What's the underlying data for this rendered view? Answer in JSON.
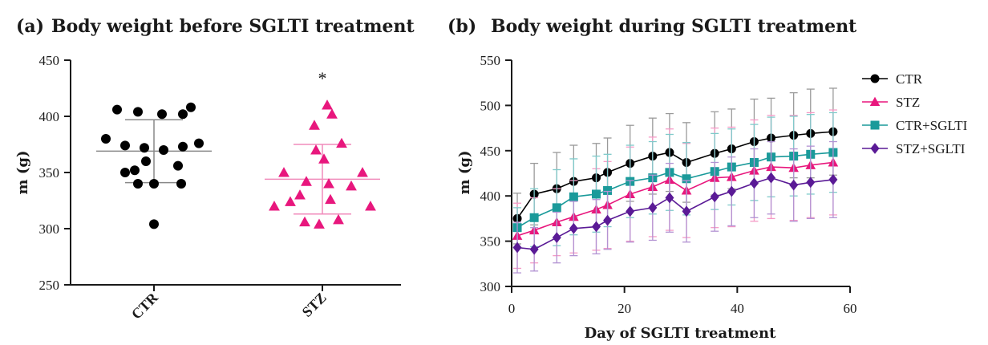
{
  "chart_data": [
    {
      "type": "scatter",
      "panel_label": "(a)",
      "title": "Body weight before SGLTI treatment",
      "xlabel": "",
      "ylabel": "m (g)",
      "ylim": [
        250,
        450
      ],
      "yticks": [
        250,
        300,
        350,
        400,
        450
      ],
      "categories": [
        "CTR",
        "STZ"
      ],
      "groups": [
        {
          "category": "CTR",
          "color": "#000000",
          "marker": "circle",
          "values": [
            406,
            404,
            402,
            402,
            408,
            380,
            374,
            372,
            370,
            373,
            376,
            360,
            350,
            352,
            356,
            340,
            340,
            340,
            304
          ],
          "mean": 369,
          "sd_low": 341,
          "sd_high": 397
        },
        {
          "category": "STZ",
          "color": "#e8177d",
          "marker": "triangle",
          "values": [
            410,
            402,
            392,
            376,
            370,
            362,
            350,
            350,
            342,
            340,
            338,
            330,
            326,
            324,
            320,
            320,
            308,
            306,
            304
          ],
          "mean": 344,
          "sd_low": 313,
          "sd_high": 375
        }
      ],
      "annotations": [
        {
          "text": "*",
          "category": "STZ",
          "y": 437
        }
      ]
    },
    {
      "type": "line",
      "panel_label": "(b)",
      "title": "Body weight during SGLTI treatment",
      "xlabel": "Day of SGLTI treatment",
      "ylabel": "m (g)",
      "xlim": [
        0,
        60
      ],
      "ylim": [
        300,
        550
      ],
      "xticks": [
        0,
        20,
        40,
        60
      ],
      "yticks": [
        300,
        350,
        400,
        450,
        500,
        550
      ],
      "legend": "right",
      "x": [
        1,
        4,
        8,
        11,
        15,
        17,
        21,
        25,
        28,
        31,
        36,
        39,
        43,
        46,
        50,
        53,
        57
      ],
      "series": [
        {
          "name": "CTR",
          "color": "#000000",
          "marker": "circle",
          "values": [
            375,
            402,
            408,
            416,
            420,
            426,
            436,
            444,
            448,
            437,
            447,
            452,
            460,
            464,
            467,
            469,
            471
          ],
          "err": [
            28,
            34,
            40,
            40,
            38,
            38,
            42,
            42,
            43,
            44,
            46,
            44,
            47,
            44,
            47,
            49,
            48
          ]
        },
        {
          "name": "STZ",
          "color": "#e8177d",
          "marker": "triangle",
          "values": [
            356,
            362,
            371,
            377,
            385,
            390,
            402,
            410,
            418,
            406,
            420,
            421,
            428,
            432,
            431,
            434,
            437
          ],
          "err": [
            36,
            36,
            37,
            40,
            45,
            48,
            52,
            55,
            56,
            52,
            55,
            55,
            56,
            57,
            58,
            58,
            58
          ]
        },
        {
          "name": "CTR+SGLTI",
          "color": "#1a9a9a",
          "marker": "square",
          "values": [
            365,
            376,
            387,
            399,
            402,
            406,
            416,
            420,
            426,
            419,
            427,
            432,
            437,
            443,
            444,
            446,
            448
          ],
          "err": [
            22,
            32,
            42,
            42,
            42,
            40,
            40,
            40,
            42,
            40,
            42,
            42,
            42,
            44,
            44,
            44,
            44
          ]
        },
        {
          "name": "STZ+SGLTI",
          "color": "#5a1a96",
          "marker": "diamond",
          "values": [
            343,
            341,
            354,
            364,
            366,
            373,
            383,
            387,
            398,
            383,
            399,
            405,
            414,
            420,
            412,
            415,
            418
          ],
          "err": [
            28,
            24,
            28,
            30,
            30,
            32,
            34,
            36,
            38,
            34,
            38,
            38,
            38,
            40,
            40,
            40,
            42
          ]
        }
      ]
    }
  ]
}
